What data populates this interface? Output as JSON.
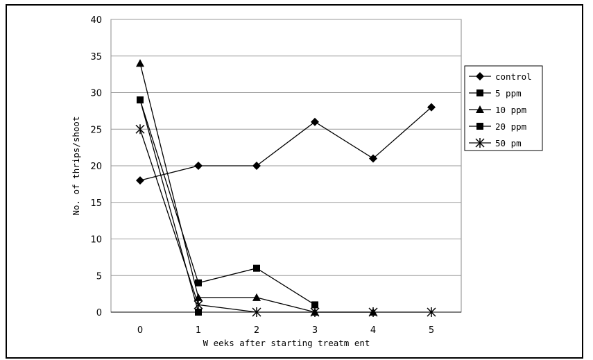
{
  "chart_data": {
    "type": "line",
    "title": "",
    "xlabel": "W eeks after starting treatm ent",
    "ylabel": "No. of thrips/shoot",
    "x": [
      0,
      1,
      2,
      3,
      4,
      5
    ],
    "x_tick_labels": [
      "0",
      "1",
      "2",
      "3",
      "4",
      "5"
    ],
    "ylim": [
      0,
      40
    ],
    "y_ticks": [
      0,
      5,
      10,
      15,
      20,
      25,
      30,
      35,
      40
    ],
    "grid": "horizontal",
    "legend_position": "right",
    "series": [
      {
        "name": "control",
        "marker": "diamond",
        "x": [
          0,
          1,
          2,
          3,
          4,
          5
        ],
        "values": [
          18,
          20,
          20,
          26,
          21,
          28
        ]
      },
      {
        "name": "5 ppm",
        "marker": "square",
        "x": [
          0,
          1,
          2,
          3
        ],
        "values": [
          29,
          4,
          6,
          1
        ]
      },
      {
        "name": "10 ppm",
        "marker": "triangle",
        "x": [
          0,
          1,
          2,
          3,
          4
        ],
        "values": [
          34,
          2,
          2,
          0,
          0
        ]
      },
      {
        "name": "20 ppm",
        "marker": "square",
        "x": [
          0,
          1
        ],
        "values": [
          29,
          0
        ]
      },
      {
        "name": "50 pm",
        "marker": "asterisk",
        "x": [
          0,
          1,
          2,
          3,
          4,
          5
        ],
        "values": [
          25,
          1,
          0,
          0,
          0,
          0
        ]
      }
    ]
  }
}
